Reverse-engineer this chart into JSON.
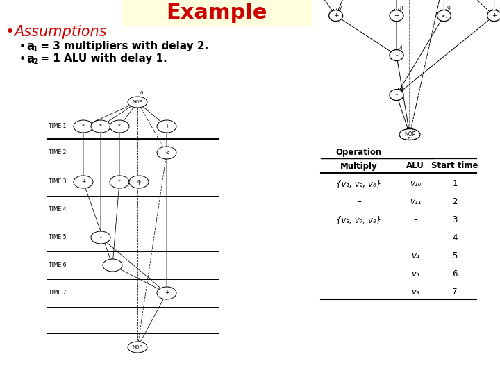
{
  "title": "Example",
  "title_color": "#cc0000",
  "title_bg": "#ffffdd",
  "assumptions_color": "#cc0000",
  "text_color": "#000000",
  "bg_color": "#ffffff",
  "assumptions": "Assumptions",
  "bullet1_text": " = 3 multipliers with delay 2.",
  "bullet2_text": " = 1 ALU with delay 1.",
  "table_header": "Operation",
  "table_cols": [
    "Multiply",
    "ALU",
    "Start time"
  ],
  "table_rows": [
    [
      "{v₁, v₂, v₆}",
      "v₁₀",
      "1"
    ],
    [
      "–",
      "v₁₁",
      "2"
    ],
    [
      "{v₃, v₇, v₈}",
      "–",
      "3"
    ],
    [
      "–",
      "–",
      "4"
    ],
    [
      "–",
      "v₄",
      "5"
    ],
    [
      "–",
      "v₅",
      "6"
    ],
    [
      "–",
      "v₉",
      "7"
    ]
  ]
}
